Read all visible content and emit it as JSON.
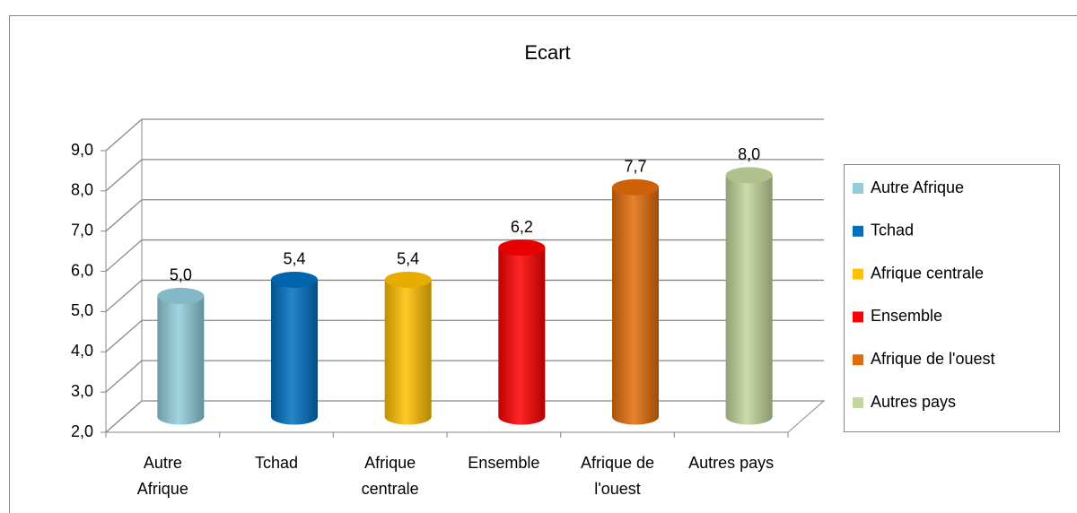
{
  "chart_data": {
    "type": "bar3d",
    "title": "Ecart",
    "categories": [
      "Autre Afrique",
      "Tchad",
      "Afrique centrale",
      "Ensemble",
      "Afrique de l'ouest",
      "Autres pays"
    ],
    "values": [
      5.0,
      5.4,
      5.4,
      6.2,
      7.7,
      8.0
    ],
    "value_labels": [
      "5,0",
      "5,4",
      "5,4",
      "6,2",
      "7,7",
      "8,0"
    ],
    "colors": [
      "#92cddc",
      "#0070c0",
      "#ffc000",
      "#ff0000",
      "#e36c09",
      "#c3d69b"
    ],
    "ylim": [
      2,
      9
    ],
    "yticks": [
      {
        "value": 2,
        "label": "2,0"
      },
      {
        "value": 3,
        "label": "3,0"
      },
      {
        "value": 4,
        "label": "4,0"
      },
      {
        "value": 5,
        "label": "5,0"
      },
      {
        "value": 6,
        "label": "6,0"
      },
      {
        "value": 7,
        "label": "7,0"
      },
      {
        "value": 8,
        "label": "8,0"
      },
      {
        "value": 9,
        "label": "9,0"
      }
    ],
    "grid": true,
    "legend": "right"
  }
}
